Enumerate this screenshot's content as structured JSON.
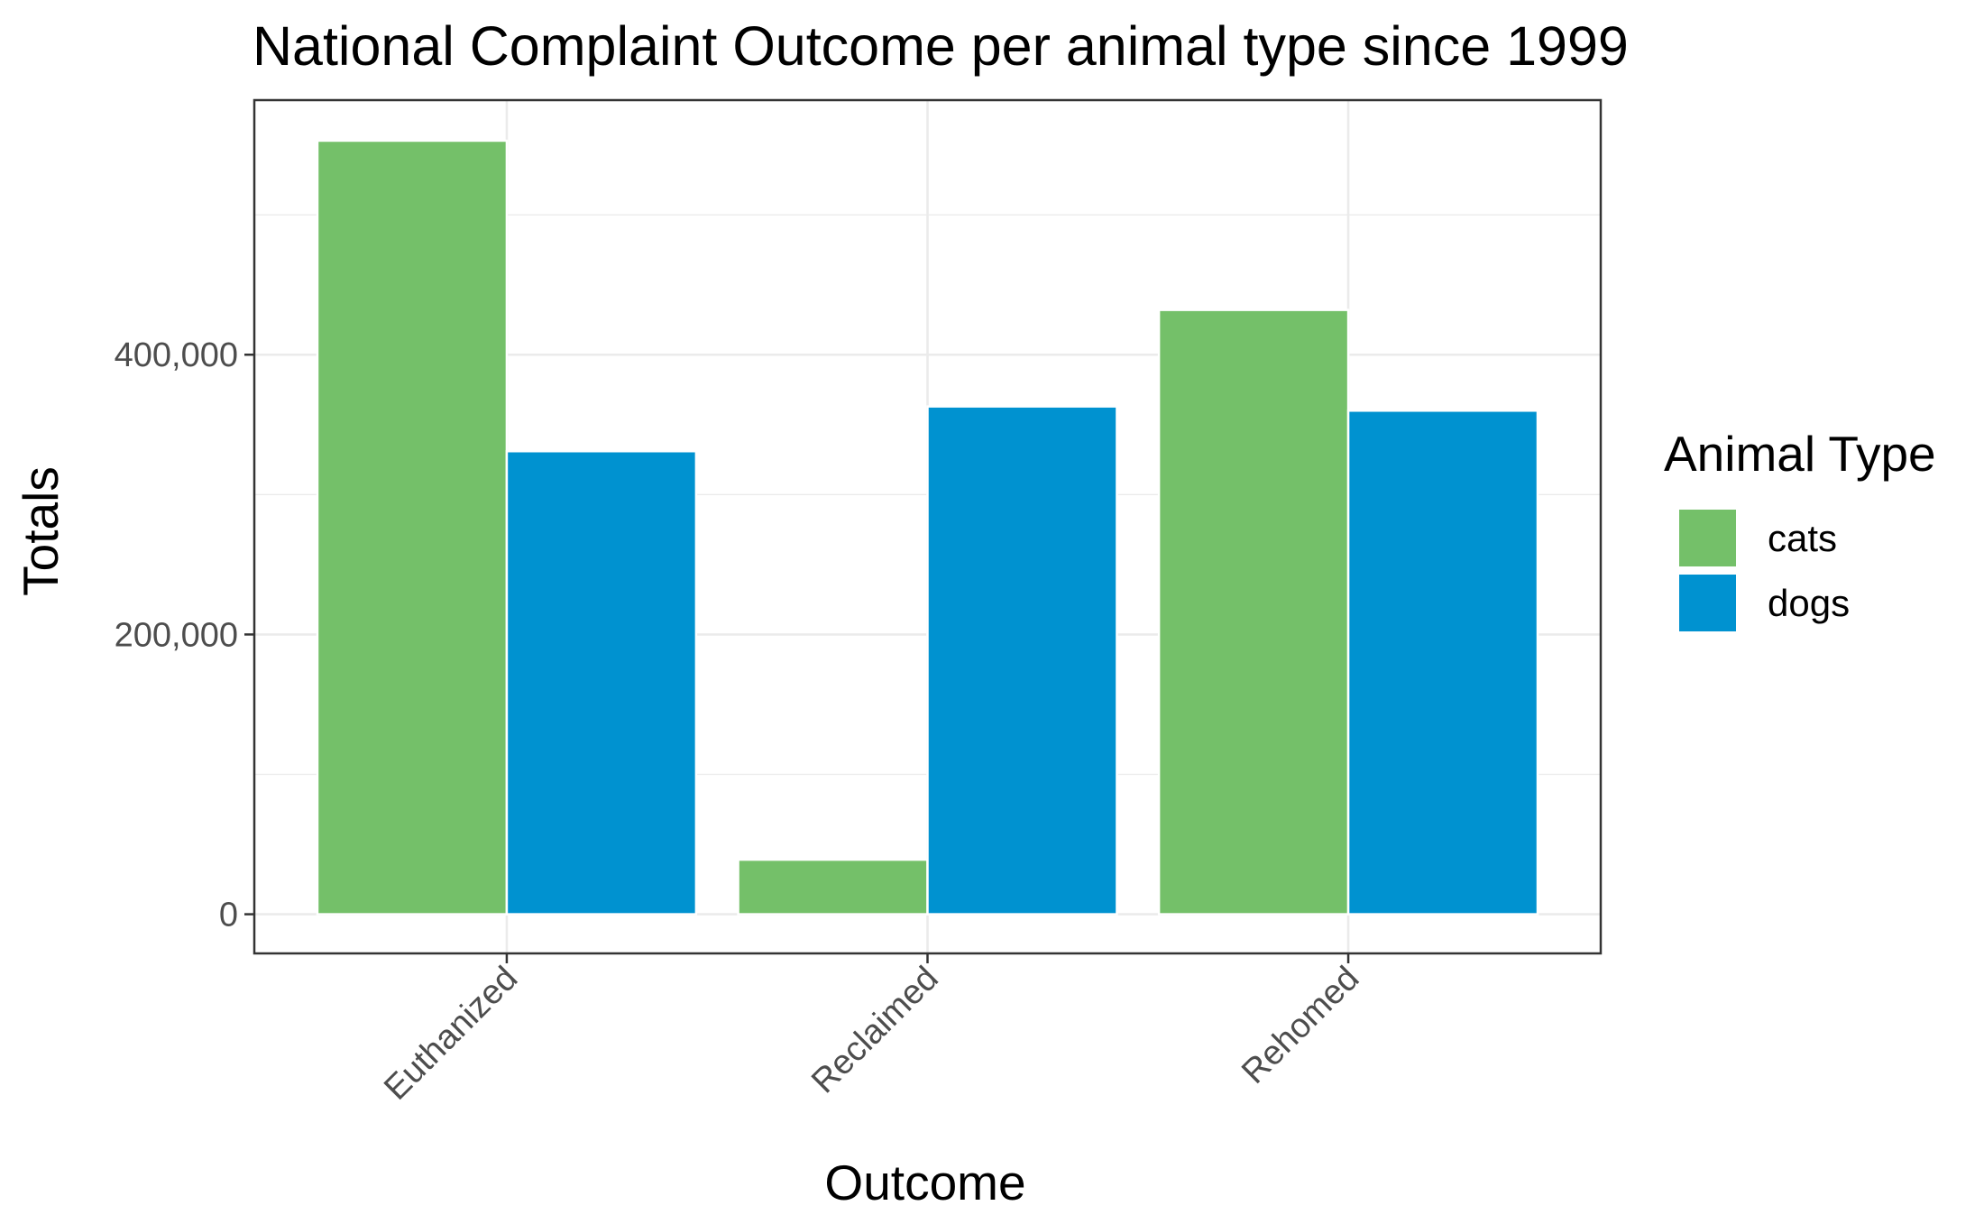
{
  "chart_data": {
    "type": "bar",
    "title": "National Complaint Outcome per animal type since 1999",
    "xlabel": "Outcome",
    "ylabel": "Totals",
    "categories": [
      "Euthanized",
      "Reclaimed",
      "Rehomed"
    ],
    "series": [
      {
        "name": "cats",
        "color": "#74c069",
        "values": [
          553000,
          39000,
          432000
        ]
      },
      {
        "name": "dogs",
        "color": "#0092d0",
        "values": [
          331000,
          363000,
          360000
        ]
      }
    ],
    "ylim": [
      -28000,
      582000
    ],
    "yticks": [
      {
        "value": 0,
        "label": "0"
      },
      {
        "value": 200000,
        "label": "200,000"
      },
      {
        "value": 400000,
        "label": "400,000"
      }
    ],
    "grid": true,
    "legend": {
      "title": "Animal Type",
      "position": "right"
    }
  }
}
